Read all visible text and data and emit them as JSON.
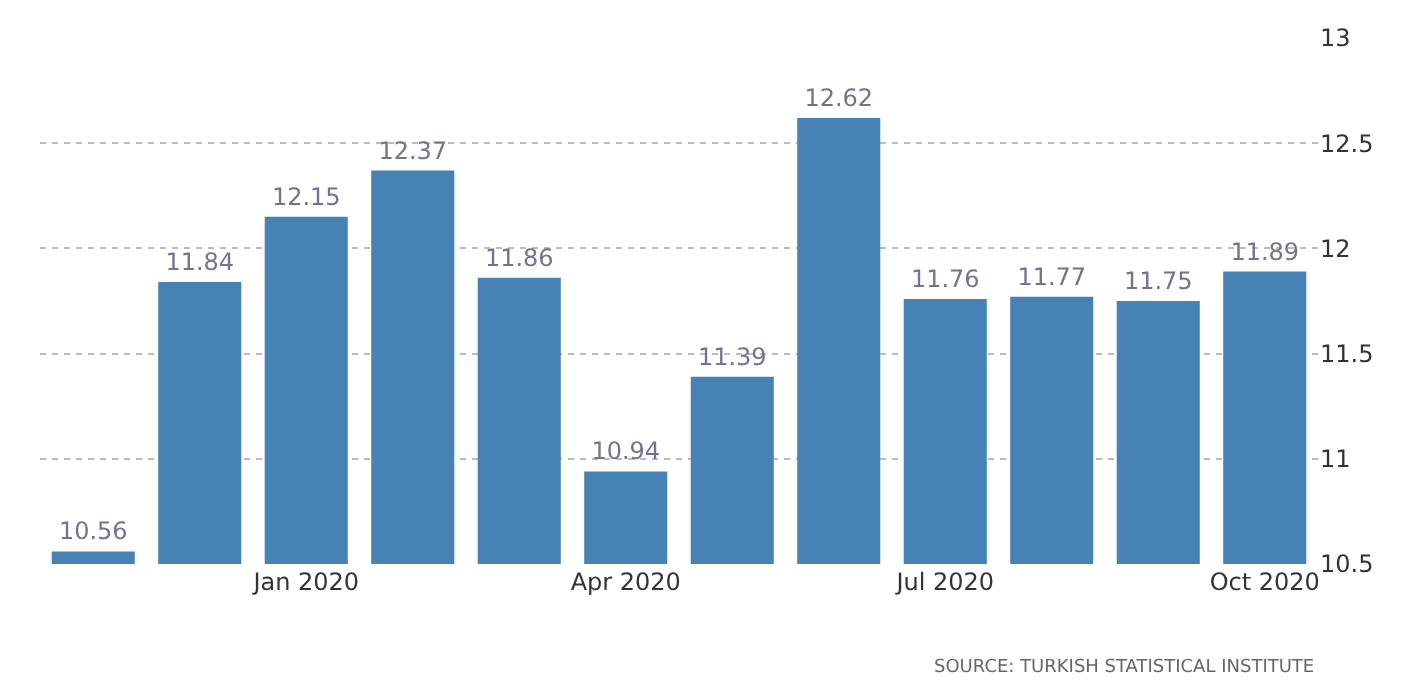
{
  "chart_data": {
    "type": "bar",
    "categories": [
      null,
      null,
      "Jan 2020",
      null,
      null,
      "Apr 2020",
      null,
      null,
      "Jul 2020",
      null,
      null,
      "Oct 2020"
    ],
    "values": [
      10.56,
      11.84,
      12.15,
      12.37,
      11.86,
      10.94,
      11.39,
      12.62,
      11.76,
      11.77,
      11.75,
      11.89
    ],
    "color": "#4682b4",
    "ylim": [
      10.5,
      13
    ],
    "yticks": [
      10.5,
      11,
      11.5,
      12,
      12.5,
      13
    ],
    "grid": "y",
    "data_labels": true,
    "annotations": [
      "SOURCE: TURKISH STATISTICAL INSTITUTE"
    ]
  }
}
